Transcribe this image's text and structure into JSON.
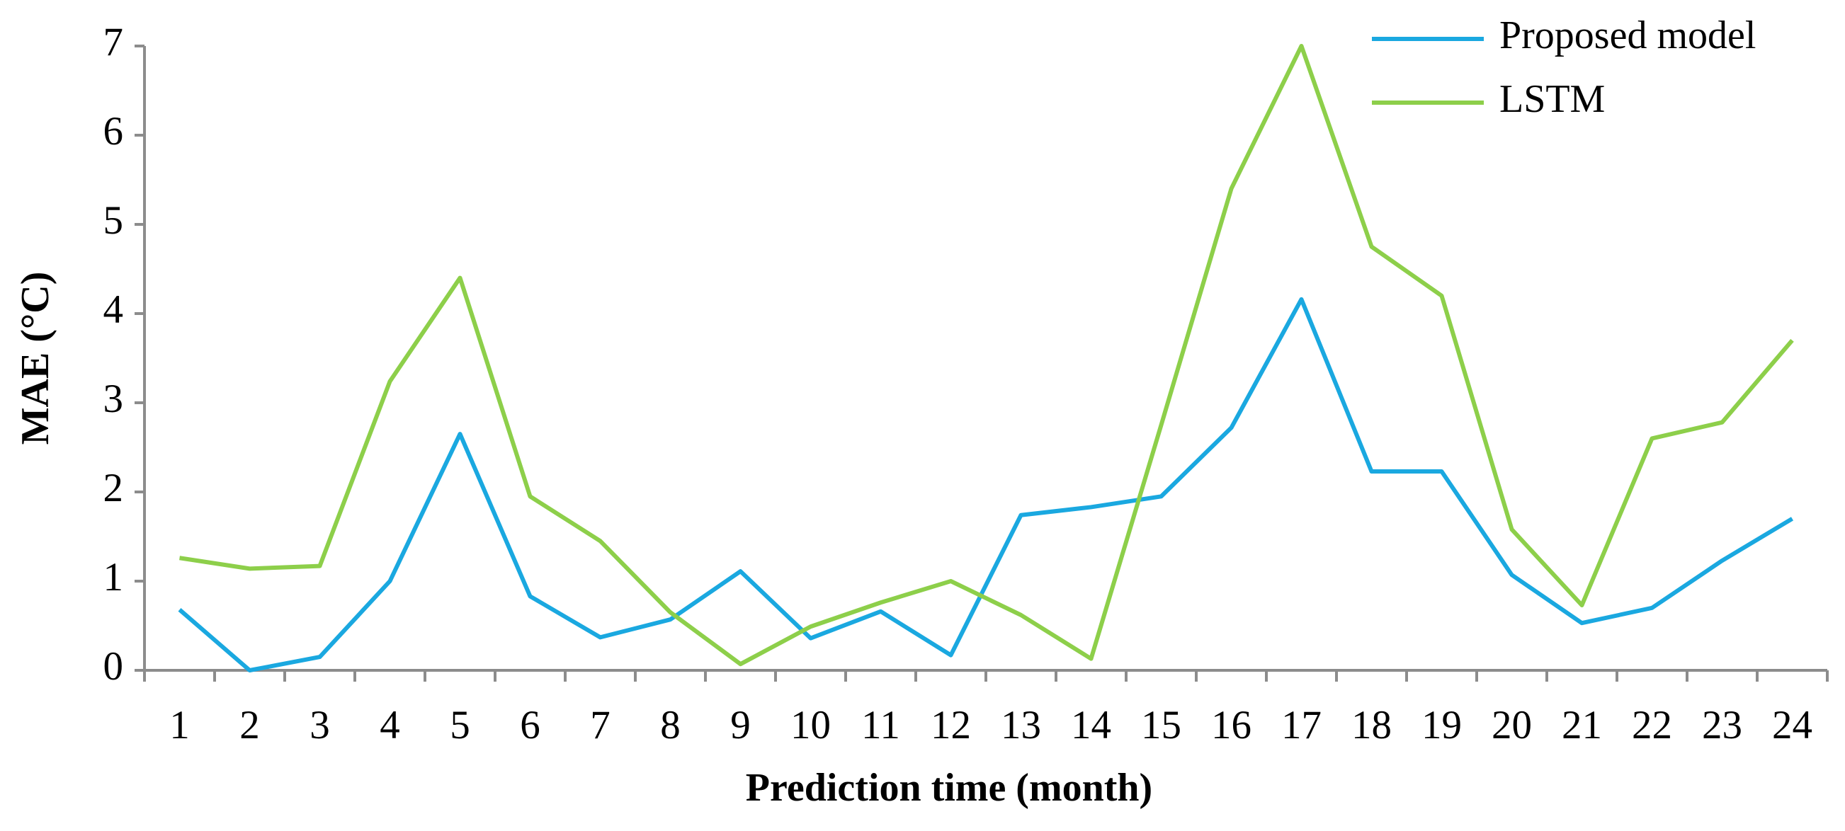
{
  "chart_data": {
    "type": "line",
    "x_label": "Prediction time (month)",
    "y_label": "MAE (°C)",
    "categories": [
      "1",
      "2",
      "3",
      "4",
      "5",
      "6",
      "7",
      "8",
      "9",
      "10",
      "11",
      "12",
      "13",
      "14",
      "15",
      "16",
      "17",
      "18",
      "19",
      "20",
      "21",
      "22",
      "23",
      "24"
    ],
    "series": [
      {
        "name": "Proposed model",
        "color": "#1aa8e0",
        "values": [
          0.68,
          0,
          0.15,
          1.0,
          2.65,
          0.83,
          0.37,
          0.57,
          1.11,
          0.36,
          0.66,
          0.17,
          1.74,
          1.83,
          1.95,
          2.72,
          4.16,
          2.23,
          2.23,
          1.07,
          0.53,
          0.7,
          1.23,
          1.7
        ]
      },
      {
        "name": "LSTM",
        "color": "#8dcf4a",
        "values": [
          1.26,
          1.14,
          1.17,
          3.24,
          4.4,
          1.95,
          1.45,
          0.65,
          0.07,
          0.49,
          0.76,
          1.0,
          0.62,
          0.13,
          2.75,
          5.4,
          7.0,
          4.75,
          4.2,
          1.58,
          0.73,
          2.6,
          2.78,
          3.7
        ]
      }
    ],
    "ylim": [
      0,
      7
    ],
    "yticks": [
      0,
      1,
      2,
      3,
      4,
      5,
      6,
      7
    ],
    "legend": "upper right"
  }
}
